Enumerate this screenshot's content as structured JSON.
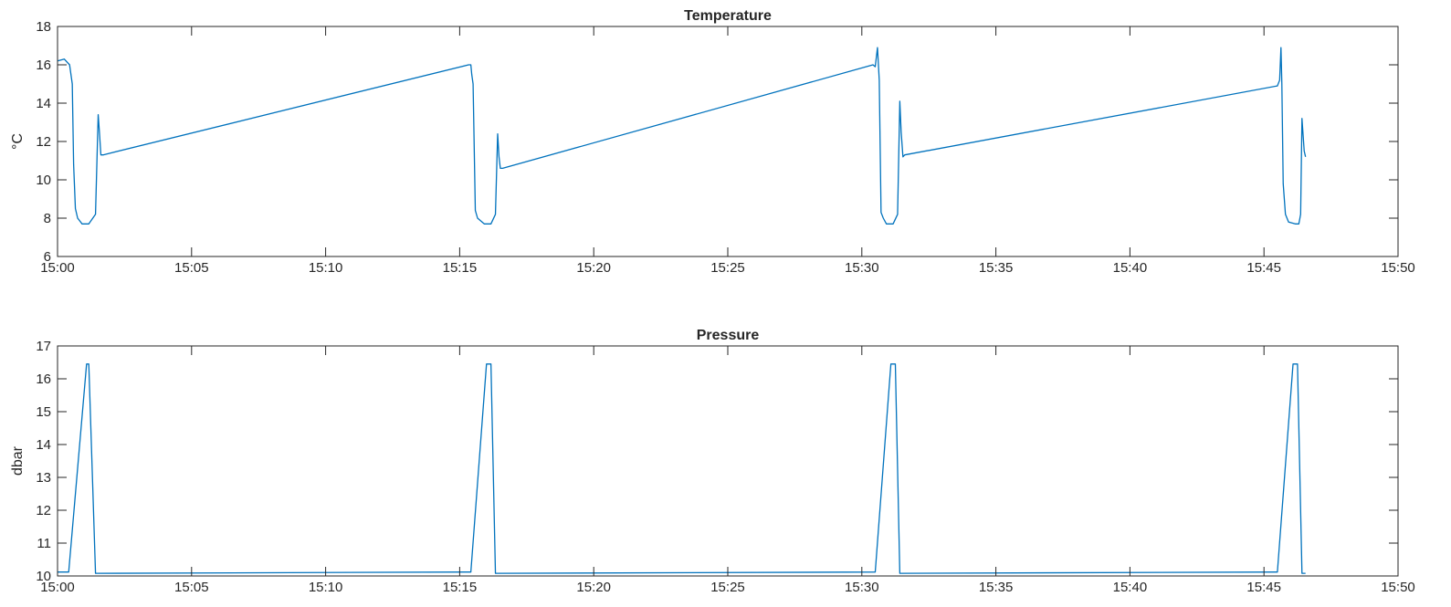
{
  "chart_data": [
    {
      "type": "line",
      "title": "Temperature",
      "xlabel": "",
      "ylabel": "°C",
      "xlim": [
        "15:00",
        "15:50"
      ],
      "ylim": [
        6,
        18
      ],
      "x_ticks": [
        "15:00",
        "15:05",
        "15:10",
        "15:15",
        "15:20",
        "15:25",
        "15:30",
        "15:35",
        "15:40",
        "15:45",
        "15:50"
      ],
      "y_ticks": [
        6,
        8,
        10,
        12,
        14,
        16,
        18
      ],
      "grid": false,
      "color": "#0072BD",
      "series": [
        {
          "x": [
            "15:00:00",
            "15:00:15",
            "15:00:27",
            "15:00:33",
            "15:00:36",
            "15:00:40",
            "15:00:45",
            "15:00:55",
            "15:01:10",
            "15:01:25",
            "15:01:31",
            "15:01:34",
            "15:01:37",
            "15:01:42",
            "15:15:20",
            "15:15:25",
            "15:15:27",
            "15:15:30",
            "15:15:35",
            "15:15:40",
            "15:15:55",
            "15:16:10",
            "15:16:20",
            "15:16:25",
            "15:16:28",
            "15:16:31",
            "15:16:36",
            "15:30:25",
            "15:30:30",
            "15:30:35",
            "15:30:39",
            "15:30:43",
            "15:30:48",
            "15:30:55",
            "15:31:10",
            "15:31:20",
            "15:31:25",
            "15:31:28",
            "15:31:32",
            "15:31:36",
            "15:45:30",
            "15:45:35",
            "15:45:38",
            "15:45:40",
            "15:45:43",
            "15:45:48",
            "15:45:55",
            "15:46:10",
            "15:46:18",
            "15:46:22",
            "15:46:25",
            "15:46:30",
            "15:46:33"
          ],
          "y": [
            16.2,
            16.3,
            16.0,
            15.0,
            10.8,
            8.5,
            8.0,
            7.7,
            7.7,
            8.2,
            13.4,
            12.4,
            11.3,
            11.3,
            16.0,
            16.0,
            15.5,
            15.0,
            8.4,
            8.0,
            7.7,
            7.7,
            8.2,
            12.4,
            11.2,
            10.6,
            10.6,
            16.0,
            15.9,
            16.9,
            15.2,
            8.3,
            8.0,
            7.7,
            7.7,
            8.2,
            14.1,
            12.5,
            11.2,
            11.3,
            14.9,
            15.2,
            16.9,
            15.0,
            9.8,
            8.2,
            7.8,
            7.7,
            7.7,
            8.2,
            13.2,
            11.5,
            11.2
          ]
        }
      ]
    },
    {
      "type": "line",
      "title": "Pressure",
      "xlabel": "",
      "ylabel": "dbar",
      "xlim": [
        "15:00",
        "15:50"
      ],
      "ylim": [
        10,
        17
      ],
      "x_ticks": [
        "15:00",
        "15:05",
        "15:10",
        "15:15",
        "15:20",
        "15:25",
        "15:30",
        "15:35",
        "15:40",
        "15:45",
        "15:50"
      ],
      "y_ticks": [
        10,
        11,
        12,
        13,
        14,
        15,
        16,
        17
      ],
      "grid": false,
      "color": "#0072BD",
      "series": [
        {
          "x": [
            "15:00:00",
            "15:00:25",
            "15:01:05",
            "15:01:10",
            "15:01:25",
            "15:15:25",
            "15:16:00",
            "15:16:05",
            "15:16:10",
            "15:16:20",
            "15:30:30",
            "15:31:05",
            "15:31:10",
            "15:31:15",
            "15:31:25",
            "15:45:30",
            "15:46:05",
            "15:46:10",
            "15:46:15",
            "15:46:25",
            "15:46:33"
          ],
          "y": [
            10.12,
            10.12,
            16.45,
            16.45,
            10.08,
            10.12,
            16.45,
            16.45,
            16.45,
            10.08,
            10.12,
            16.45,
            16.45,
            16.45,
            10.08,
            10.12,
            16.45,
            16.45,
            16.45,
            10.08,
            10.08
          ]
        }
      ]
    }
  ]
}
